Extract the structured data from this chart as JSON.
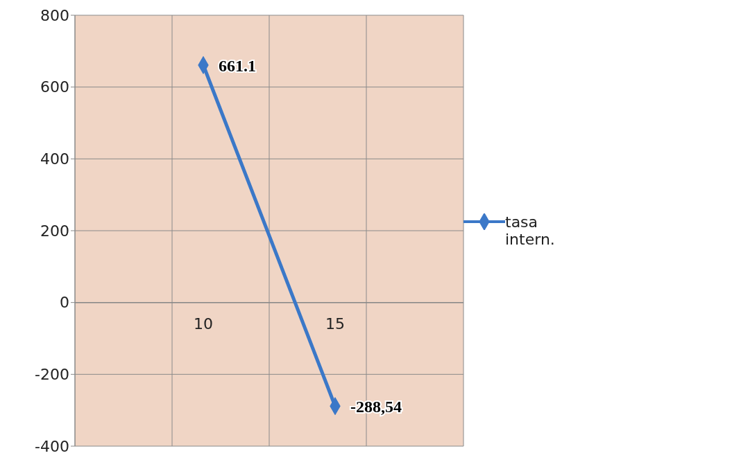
{
  "chart_data": {
    "type": "line",
    "categories": [
      "10",
      "15"
    ],
    "series": [
      {
        "name": "tasa intern.",
        "color": "#3b78c8",
        "values": [
          661.1,
          -288.54
        ],
        "value_labels": [
          "661.1",
          "-288,54"
        ]
      }
    ],
    "ylim": [
      -400,
      800
    ],
    "yticks": [
      -400,
      -200,
      0,
      200,
      400,
      600,
      800
    ],
    "grid": true,
    "legend": "right",
    "marker": "diamond"
  }
}
